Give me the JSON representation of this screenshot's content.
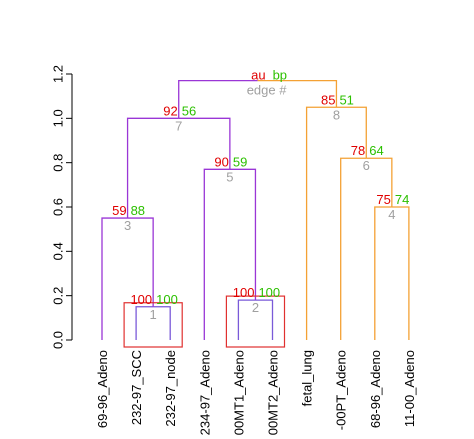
{
  "chart_data": {
    "type": "dendrogram",
    "legend": {
      "au_label": "au",
      "bp_label": "bp",
      "edge_label": "edge #"
    },
    "y_axis": {
      "ticks": [
        "0.0",
        "0.2",
        "0.4",
        "0.6",
        "0.8",
        "1.0",
        "1.2"
      ],
      "tick_values": [
        0.0,
        0.2,
        0.4,
        0.6,
        0.8,
        1.0,
        1.2
      ],
      "ylim": [
        0.0,
        1.2
      ]
    },
    "leaves": [
      "69-96_Adeno",
      "232-97_SCC",
      "232-97_node",
      "234-97_Adeno",
      "00MT1_Adeno",
      "00MT2_Adeno",
      "fetal_lung",
      "-00PT_Adeno",
      "68-96_Adeno",
      "11-00_Adeno"
    ],
    "nodes": [
      {
        "edge": "1",
        "au": "100",
        "bp": "100",
        "height": 0.15,
        "left": "leaf:1",
        "right": "leaf:2",
        "highlighted": true
      },
      {
        "edge": "2",
        "au": "100",
        "bp": "100",
        "height": 0.18,
        "left": "leaf:4",
        "right": "leaf:5",
        "highlighted": true
      },
      {
        "edge": "3",
        "au": "59",
        "bp": "88",
        "height": 0.55,
        "left": "leaf:0",
        "right": "node:0",
        "highlighted": false
      },
      {
        "edge": "4",
        "au": "75",
        "bp": "74",
        "height": 0.6,
        "left": "leaf:8",
        "right": "leaf:9",
        "highlighted": false
      },
      {
        "edge": "5",
        "au": "90",
        "bp": "59",
        "height": 0.77,
        "left": "leaf:3",
        "right": "node:1",
        "highlighted": false
      },
      {
        "edge": "6",
        "au": "78",
        "bp": "64",
        "height": 0.82,
        "left": "leaf:7",
        "right": "node:3",
        "highlighted": false
      },
      {
        "edge": "7",
        "au": "92",
        "bp": "56",
        "height": 1.0,
        "left": "node:2",
        "right": "node:4",
        "highlighted": false
      },
      {
        "edge": "8",
        "au": "85",
        "bp": "51",
        "height": 1.05,
        "left": "leaf:6",
        "right": "node:5",
        "highlighted": false
      },
      {
        "edge": "",
        "au": "",
        "bp": "",
        "height": 1.17,
        "left": "node:6",
        "right": "node:7",
        "highlighted": false
      }
    ],
    "colors": {
      "left_cluster": "#9a36d6",
      "left_inner": "#7a5ad8",
      "right_cluster": "#f4a134",
      "au": "#e00000",
      "bp": "#2cc000",
      "edge": "#a0a0a0",
      "highlight_box": "#e0302f"
    }
  }
}
